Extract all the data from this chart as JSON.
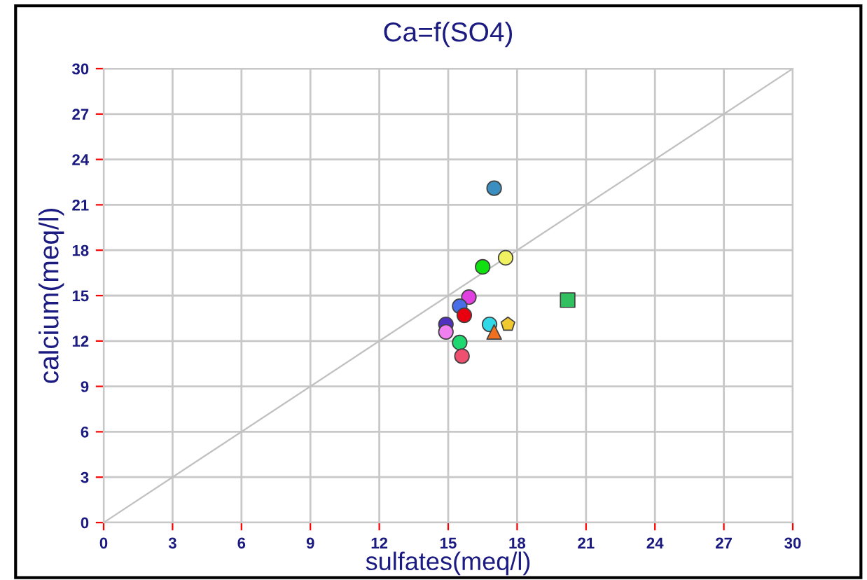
{
  "chart_data": {
    "type": "scatter",
    "title": "Ca=f(SO4)",
    "xlabel": "sulfates(meq/l)",
    "ylabel": "calcium(meq/l)",
    "xlim": [
      0,
      30
    ],
    "ylim": [
      0,
      30
    ],
    "xticks": [
      0,
      3,
      6,
      9,
      12,
      15,
      18,
      21,
      24,
      27,
      30
    ],
    "yticks": [
      0,
      3,
      6,
      9,
      12,
      15,
      18,
      21,
      24,
      27,
      30
    ],
    "grid": true,
    "legend": false,
    "series": [
      {
        "type": "line",
        "color": "#c0c0c0",
        "x": [
          0,
          30
        ],
        "values": [
          0,
          30
        ],
        "marker": "none"
      },
      {
        "marker": "circle",
        "x": [
          17.0,
          17.5,
          16.5,
          15.9,
          15.5,
          15.7,
          14.9,
          14.9,
          16.8,
          15.5,
          15.6
        ],
        "values": [
          22.1,
          17.5,
          16.9,
          14.9,
          14.3,
          13.7,
          13.1,
          12.6,
          13.1,
          11.9,
          11.0
        ],
        "colors": [
          "#3a8fc0",
          "#f0f060",
          "#10e010",
          "#e040e0",
          "#4a6ee8",
          "#e80010",
          "#5030c0",
          "#f080f0",
          "#30d8e8",
          "#20d870",
          "#f05070"
        ]
      },
      {
        "type": "scatter",
        "marker": "square",
        "x": [
          20.2
        ],
        "values": [
          14.7
        ],
        "colors": [
          "#30c060"
        ]
      },
      {
        "type": "scatter",
        "x": [
          17.6
        ],
        "values": [
          13.1
        ],
        "colors": [
          "#f0c830"
        ]
      },
      {
        "type": "scatter",
        "marker": "triangle",
        "x": [
          17.0
        ],
        "values": [
          12.6
        ],
        "colors": [
          "#f07020"
        ]
      }
    ]
  }
}
